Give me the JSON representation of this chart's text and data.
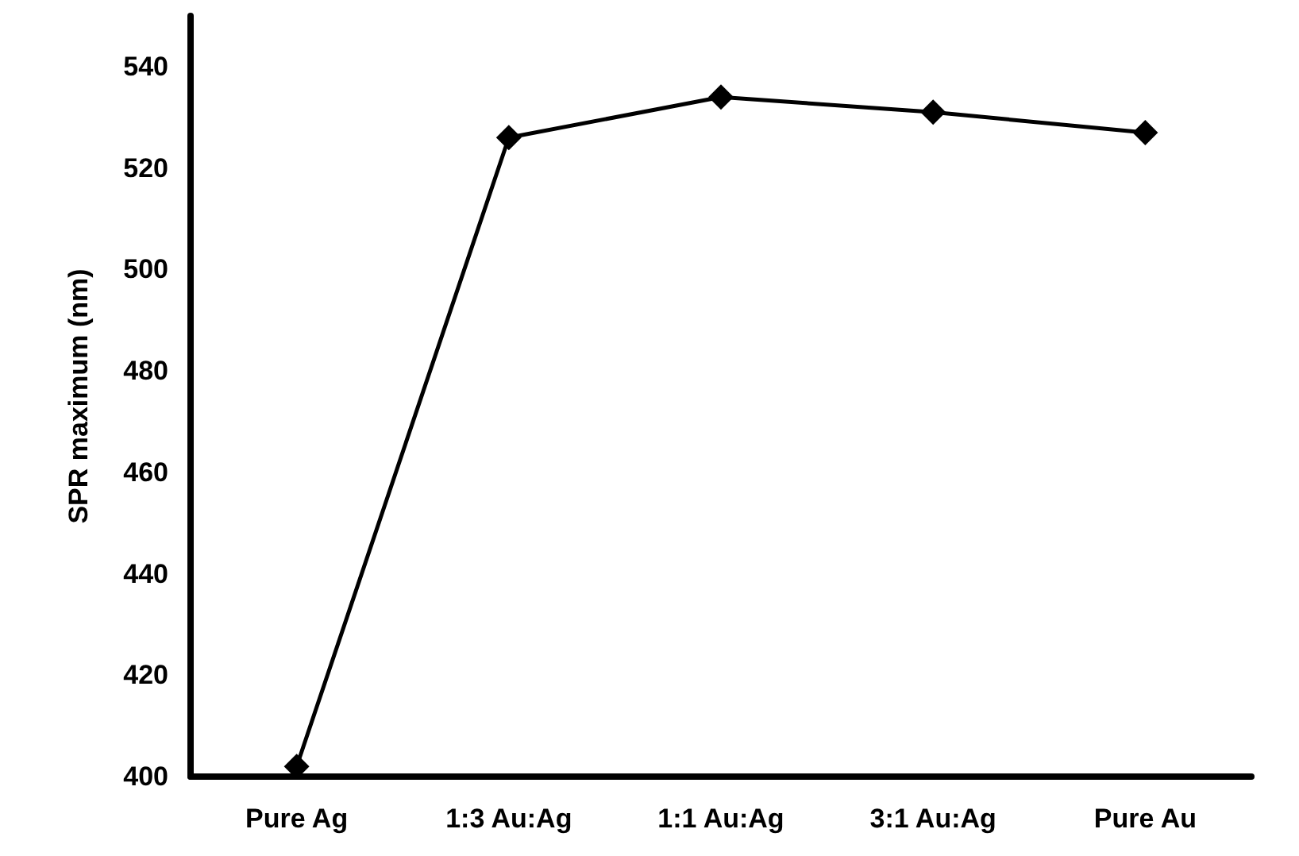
{
  "chart_data": {
    "type": "line",
    "ylabel": "SPR maximum (nm)",
    "categories": [
      "Pure Ag",
      "1:3 Au:Ag",
      "1:1 Au:Ag",
      "3:1 Au:Ag",
      "Pure Au"
    ],
    "series": [
      {
        "color": "#000000",
        "values": [
          402,
          526,
          534,
          531,
          527
        ]
      }
    ],
    "ylim": [
      400,
      550
    ],
    "yticks": [
      400,
      420,
      440,
      460,
      480,
      500,
      520,
      540
    ],
    "grid": false,
    "marker": "diamond",
    "line_style": "solid"
  }
}
